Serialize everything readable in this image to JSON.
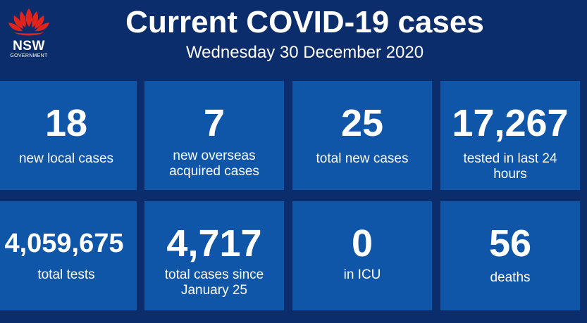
{
  "header": {
    "logo_text": "NSW",
    "logo_sub": "GOVERNMENT",
    "title": "Current COVID-19 cases",
    "date": "Wednesday 30 December 2020"
  },
  "stats": [
    {
      "value": "18",
      "label": "new local cases"
    },
    {
      "value": "7",
      "label": "new overseas acquired cases"
    },
    {
      "value": "25",
      "label": "total new cases"
    },
    {
      "value": "17,267",
      "label": "tested in last 24 hours"
    },
    {
      "value": "4,059,675",
      "label": "total tests"
    },
    {
      "value": "4,717",
      "label": "total cases since January 25"
    },
    {
      "value": "0",
      "label": "in ICU"
    },
    {
      "value": "56",
      "label": "deaths"
    }
  ],
  "colors": {
    "background": "#0b2d6b",
    "tile": "#1056a8",
    "waratah": "#e2231a"
  }
}
